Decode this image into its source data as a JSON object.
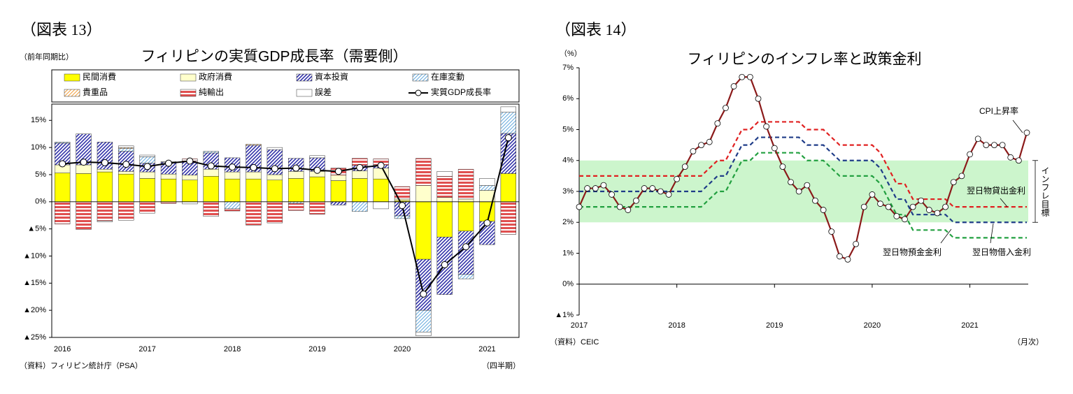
{
  "chart_data": [
    {
      "type": "bar",
      "stacked": true,
      "figure_label": "（図表 13）",
      "title": "フィリピンの実質GDP成長率（需要側）",
      "y_axis_label": "（前年同期比）",
      "x_axis_label": "（四半期）",
      "source": "（資料）フィリピン統計庁（PSA）",
      "categories": [
        "2016",
        null,
        null,
        null,
        "2017",
        null,
        null,
        null,
        "2018",
        null,
        null,
        null,
        "2019",
        null,
        null,
        null,
        "2020",
        null,
        null,
        null,
        "2021",
        null
      ],
      "ylim": [
        -25,
        18
      ],
      "yticks": [
        {
          "value": -25,
          "label": "▲25%"
        },
        {
          "value": -20,
          "label": "▲20%"
        },
        {
          "value": -15,
          "label": "▲15%"
        },
        {
          "value": -10,
          "label": "▲10%"
        },
        {
          "value": -5,
          "label": "▲5%"
        },
        {
          "value": 0,
          "label": "0%"
        },
        {
          "value": 5,
          "label": "5%"
        },
        {
          "value": 10,
          "label": "10%"
        },
        {
          "value": 15,
          "label": "15%"
        }
      ],
      "series": [
        {
          "name": "民間消費",
          "color": "#ffff00",
          "hatch": "none",
          "values": [
            5.3,
            5.2,
            5.5,
            5.1,
            4.3,
            4.2,
            4.0,
            4.7,
            4.2,
            4.2,
            4.0,
            4.3,
            4.6,
            3.9,
            4.3,
            4.2,
            0.2,
            -10.6,
            -6.5,
            -5.4,
            -3.6,
            5.2
          ]
        },
        {
          "name": "政府消費",
          "color": "#ffffcc",
          "hatch": "none",
          "values": [
            1.5,
            1.6,
            0.5,
            0.5,
            1.2,
            0.9,
            0.9,
            1.3,
            1.3,
            1.3,
            1.0,
            1.3,
            1.0,
            1.0,
            1.4,
            2.0,
            0.3,
            3.0,
            0.8,
            0.5,
            2.1,
            0
          ]
        },
        {
          "name": "資本投資",
          "color": "#3333aa",
          "hatch": "diagonal",
          "values": [
            4.0,
            5.7,
            5.0,
            3.7,
            1.6,
            2.2,
            2.6,
            3.0,
            2.6,
            4.9,
            4.6,
            2.4,
            2.5,
            -0.6,
            1.0,
            0.6,
            -2.6,
            -9.4,
            -10.6,
            -8.0,
            -4.3,
            7.4
          ]
        },
        {
          "name": "在庫変動",
          "color": "#66aadd",
          "hatch": "diagonal-light",
          "values": [
            0.2,
            0,
            0,
            0.5,
            1.2,
            0,
            0,
            0.3,
            -1.3,
            0,
            0,
            -0.3,
            0,
            0,
            -1.8,
            0,
            -0.5,
            -4.0,
            0,
            -0.8,
            0.9,
            3.9
          ]
        },
        {
          "name": "貴重品",
          "color": "#f0a040",
          "hatch": "diagonal-light",
          "values": [
            0,
            0,
            0,
            0.2,
            0,
            0,
            0,
            0,
            0,
            0.2,
            0,
            0,
            0,
            0,
            0,
            0,
            0,
            0,
            0,
            0,
            0,
            0
          ]
        },
        {
          "name": "純輸出",
          "color": "#e05050",
          "hatch": "horizontal",
          "values": [
            -4.1,
            -5.1,
            -3.5,
            -3.4,
            -2.1,
            -0.3,
            0.4,
            -2.7,
            -0.4,
            -4.3,
            -3.9,
            -1.3,
            -2.3,
            1.3,
            1.3,
            1.1,
            2.3,
            5.0,
            3.9,
            5.5,
            0,
            -6.0
          ]
        },
        {
          "name": "誤差",
          "color": "#ffffff",
          "hatch": "none",
          "values": [
            0,
            0,
            -0.2,
            0.3,
            0.3,
            0.1,
            -0.4,
            0,
            0,
            0,
            0.4,
            0,
            0.4,
            0,
            0,
            -1.3,
            0,
            -0.7,
            0.9,
            0,
            1.3,
            1.0
          ]
        },
        {
          "name": "実質GDP成長率",
          "type": "line",
          "color": "#000000",
          "values": [
            7.0,
            7.3,
            7.2,
            6.9,
            6.5,
            7.1,
            7.5,
            6.6,
            6.4,
            6.3,
            6.1,
            6.2,
            5.8,
            5.6,
            6.3,
            6.7,
            -0.7,
            -17.0,
            -11.6,
            -8.3,
            -3.9,
            11.8
          ]
        }
      ]
    },
    {
      "type": "line",
      "figure_label": "（図表 14）",
      "title": "フィリピンのインフレ率と政策金利",
      "y_axis_label": "（%）",
      "x_axis_label": "（月次）",
      "source": "（資料）CEIC",
      "categories": [
        "2017",
        null,
        null,
        null,
        null,
        null,
        null,
        null,
        null,
        null,
        null,
        null,
        "2018",
        null,
        null,
        null,
        null,
        null,
        null,
        null,
        null,
        null,
        null,
        null,
        "2019",
        null,
        null,
        null,
        null,
        null,
        null,
        null,
        null,
        null,
        null,
        null,
        "2020",
        null,
        null,
        null,
        null,
        null,
        null,
        null,
        null,
        null,
        null,
        null,
        "2021",
        null,
        null,
        null,
        null,
        null,
        null,
        null
      ],
      "ylim": [
        -1,
        7
      ],
      "yticks": [
        {
          "value": -1,
          "label": "▲1%"
        },
        {
          "value": 0,
          "label": "0%"
        },
        {
          "value": 1,
          "label": "1%"
        },
        {
          "value": 2,
          "label": "2%"
        },
        {
          "value": 3,
          "label": "3%"
        },
        {
          "value": 4,
          "label": "4%"
        },
        {
          "value": 5,
          "label": "5%"
        },
        {
          "value": 6,
          "label": "6%"
        },
        {
          "value": 7,
          "label": "7%"
        }
      ],
      "target_band": {
        "label": "インフレ目標",
        "range": [
          2,
          4
        ],
        "color": "#ccf5cc"
      },
      "series": [
        {
          "name": "CPI上昇率",
          "color": "#8b1a1a",
          "dashed": false,
          "markers": true,
          "values": [
            2.5,
            3.1,
            3.1,
            3.2,
            2.9,
            2.5,
            2.4,
            2.7,
            3.1,
            3.1,
            3.0,
            2.9,
            3.4,
            3.8,
            4.3,
            4.5,
            4.6,
            5.2,
            5.7,
            6.4,
            6.7,
            6.7,
            6.0,
            5.1,
            4.4,
            3.8,
            3.3,
            3.0,
            3.2,
            2.7,
            2.4,
            1.7,
            0.9,
            0.8,
            1.3,
            2.5,
            2.9,
            2.6,
            2.5,
            2.2,
            2.1,
            2.5,
            2.7,
            2.4,
            2.3,
            2.5,
            3.3,
            3.5,
            4.2,
            4.7,
            4.5,
            4.5,
            4.5,
            4.1,
            4.0,
            4.9
          ]
        },
        {
          "name": "翌日物貸出金利",
          "color": "#e02020",
          "dashed": true,
          "markers": false,
          "values": [
            3.5,
            3.5,
            3.5,
            3.5,
            3.5,
            3.5,
            3.5,
            3.5,
            3.5,
            3.5,
            3.5,
            3.5,
            3.5,
            3.5,
            3.5,
            3.5,
            3.75,
            4.0,
            4.0,
            4.5,
            5.0,
            5.0,
            5.25,
            5.25,
            5.25,
            5.25,
            5.25,
            5.25,
            5.0,
            5.0,
            5.0,
            4.75,
            4.5,
            4.5,
            4.5,
            4.5,
            4.5,
            4.25,
            3.75,
            3.25,
            3.25,
            2.75,
            2.75,
            2.75,
            2.75,
            2.75,
            2.5,
            2.5,
            2.5,
            2.5,
            2.5,
            2.5,
            2.5,
            2.5,
            2.5,
            2.5
          ]
        },
        {
          "name": "翌日物預金金利",
          "color": "#22a040",
          "dashed": true,
          "markers": false,
          "values": [
            2.5,
            2.5,
            2.5,
            2.5,
            2.5,
            2.5,
            2.5,
            2.5,
            2.5,
            2.5,
            2.5,
            2.5,
            2.5,
            2.5,
            2.5,
            2.5,
            2.75,
            3.0,
            3.0,
            3.5,
            4.0,
            4.0,
            4.25,
            4.25,
            4.25,
            4.25,
            4.25,
            4.25,
            4.0,
            4.0,
            4.0,
            3.75,
            3.5,
            3.5,
            3.5,
            3.5,
            3.5,
            3.25,
            2.75,
            2.25,
            2.25,
            1.75,
            1.75,
            1.75,
            1.75,
            1.75,
            1.5,
            1.5,
            1.5,
            1.5,
            1.5,
            1.5,
            1.5,
            1.5,
            1.5,
            1.5
          ]
        },
        {
          "name": "翌日物借入金利",
          "color": "#1f3c88",
          "dashed": true,
          "markers": false,
          "values": [
            3.0,
            3.0,
            3.0,
            3.0,
            3.0,
            3.0,
            3.0,
            3.0,
            3.0,
            3.0,
            3.0,
            3.0,
            3.0,
            3.0,
            3.0,
            3.0,
            3.25,
            3.5,
            3.5,
            4.0,
            4.5,
            4.5,
            4.75,
            4.75,
            4.75,
            4.75,
            4.75,
            4.75,
            4.5,
            4.5,
            4.5,
            4.25,
            4.0,
            4.0,
            4.0,
            4.0,
            4.0,
            3.75,
            3.25,
            2.75,
            2.75,
            2.25,
            2.25,
            2.25,
            2.25,
            2.25,
            2.0,
            2.0,
            2.0,
            2.0,
            2.0,
            2.0,
            2.0,
            2.0,
            2.0,
            2.0
          ]
        }
      ]
    }
  ]
}
